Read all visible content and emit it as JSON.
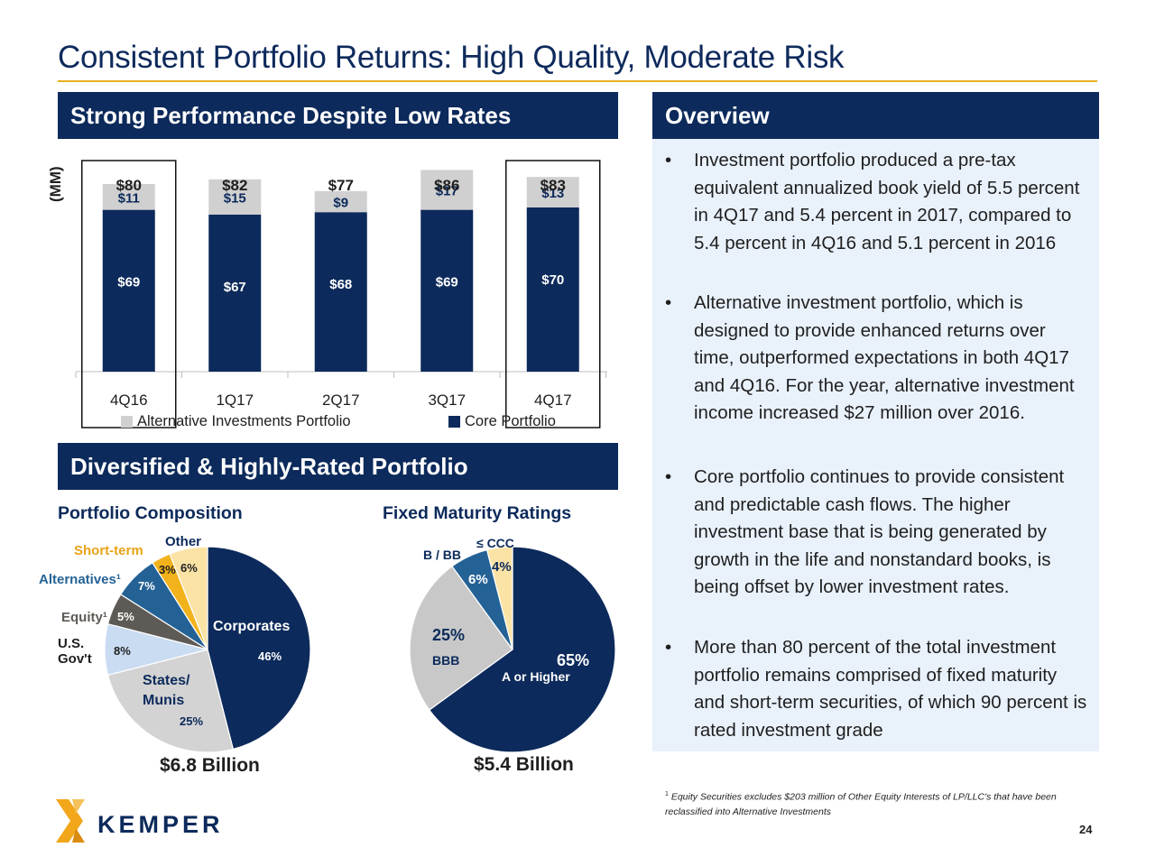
{
  "title": "Consistent Portfolio Returns: High Quality, Moderate Risk",
  "sections": {
    "performance": "Strong Performance Despite Low Rates",
    "overview": "Overview",
    "diversified": "Diversified & Highly-Rated Portfolio"
  },
  "colors": {
    "navy": "#0c2a5b",
    "gold": "#e8b020",
    "alt_gray": "#d0d0d0",
    "panel_bg": "#e9f1fb"
  },
  "chart_data": [
    {
      "type": "bar",
      "stacked": true,
      "categories": [
        "4Q16",
        "1Q17",
        "2Q17",
        "3Q17",
        "4Q17"
      ],
      "series": [
        {
          "name": "Core Portfolio",
          "values": [
            69,
            67,
            68,
            69,
            70
          ],
          "labels": [
            "$69",
            "$67",
            "$68",
            "$69",
            "$70"
          ],
          "color": "#0c2a5b"
        },
        {
          "name": "Alternative Investments Portfolio",
          "values": [
            11,
            15,
            9,
            17,
            13
          ],
          "labels": [
            "$11",
            "$15",
            "$9",
            "$17",
            "$13"
          ],
          "color": "#d0d0d0"
        }
      ],
      "totals": [
        "$80",
        "$82",
        "$77",
        "$86",
        "$83"
      ],
      "highlighted": [
        "4Q16",
        "4Q17"
      ],
      "ylabel": "(MM)",
      "ylim": [
        0,
        90
      ],
      "legend_position": "bottom"
    },
    {
      "type": "pie",
      "title": "Portfolio Composition",
      "total_label": "$6.8 Billion",
      "slices": [
        {
          "label": "Corporates",
          "value": 46,
          "value_label": "46%",
          "color": "#0c2a5b"
        },
        {
          "label": "States/\nMunis",
          "value": 25,
          "value_label": "25%",
          "color": "#d3d3d3"
        },
        {
          "label": "U.S.\nGov't",
          "value": 8,
          "value_label": "8%",
          "color": "#c9dcf2"
        },
        {
          "label": "Equity¹",
          "value": 5,
          "value_label": "5%",
          "color": "#5e5a55"
        },
        {
          "label": "Alternatives¹",
          "value": 7,
          "value_label": "7%",
          "color": "#246296"
        },
        {
          "label": "Short-term",
          "value": 3,
          "value_label": "3%",
          "color": "#f2b21b"
        },
        {
          "label": "Other",
          "value": 6,
          "value_label": "6%",
          "color": "#fbe3a6"
        }
      ]
    },
    {
      "type": "pie",
      "title": "Fixed Maturity Ratings",
      "total_label": "$5.4 Billion",
      "slices": [
        {
          "label": "A or Higher",
          "value": 65,
          "value_label": "65%",
          "color": "#0c2a5b"
        },
        {
          "label": "BBB",
          "value": 25,
          "value_label": "25%",
          "color": "#c8c8c8"
        },
        {
          "label": "B / BB",
          "value": 6,
          "value_label": "6%",
          "color": "#246296"
        },
        {
          "label": "≤ CCC",
          "value": 4,
          "value_label": "4%",
          "color": "#fbe3a6"
        }
      ]
    }
  ],
  "overview_bullets": [
    "Investment portfolio produced a pre-tax equivalent annualized book yield of 5.5 percent in 4Q17 and 5.4 percent in 2017, compared to 5.4 percent in 4Q16 and 5.1 percent in 2016",
    "Alternative investment portfolio, which is designed to provide enhanced returns over time, outperformed expectations in both 4Q17 and 4Q16. For the year, alternative investment income increased $27 million over 2016.",
    "Core portfolio continues to provide consistent and predictable cash flows. The higher investment base that is being generated by growth in the life and nonstandard books, is being offset by lower investment rates.",
    "More than 80 percent of the total investment portfolio remains comprised of fixed maturity and short-term securities, of which 90 percent is rated investment grade"
  ],
  "bullet_glyph": "•",
  "footnote": {
    "marker": "1",
    "text": "Equity Securities excludes $203 million of Other Equity Interests of LP/LLC's that have been reclassified into Alternative Investments"
  },
  "page_number": "24",
  "logo": {
    "name": "KEMPER",
    "icon": "kemper-k-logo-icon"
  }
}
